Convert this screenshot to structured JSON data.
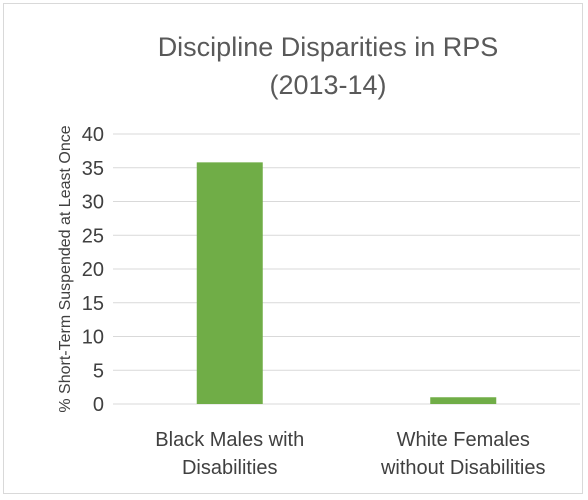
{
  "chart_data": {
    "type": "bar",
    "title_lines": [
      "Discipline Disparities in RPS",
      "(2013-14)"
    ],
    "xlabel": "",
    "ylabel": "% Short-Term Suspended at Least Once",
    "categories": [
      [
        "Black Males with",
        "Disabilities"
      ],
      [
        "White Females",
        "without Disabilities"
      ]
    ],
    "values": [
      35.8,
      1
    ],
    "ylim": [
      0,
      40
    ],
    "yticks": [
      0,
      5,
      10,
      15,
      20,
      25,
      30,
      35,
      40
    ],
    "grid": true,
    "legend": "none",
    "bar_color": "#70ad47",
    "grid_color": "#d9d9d9"
  }
}
